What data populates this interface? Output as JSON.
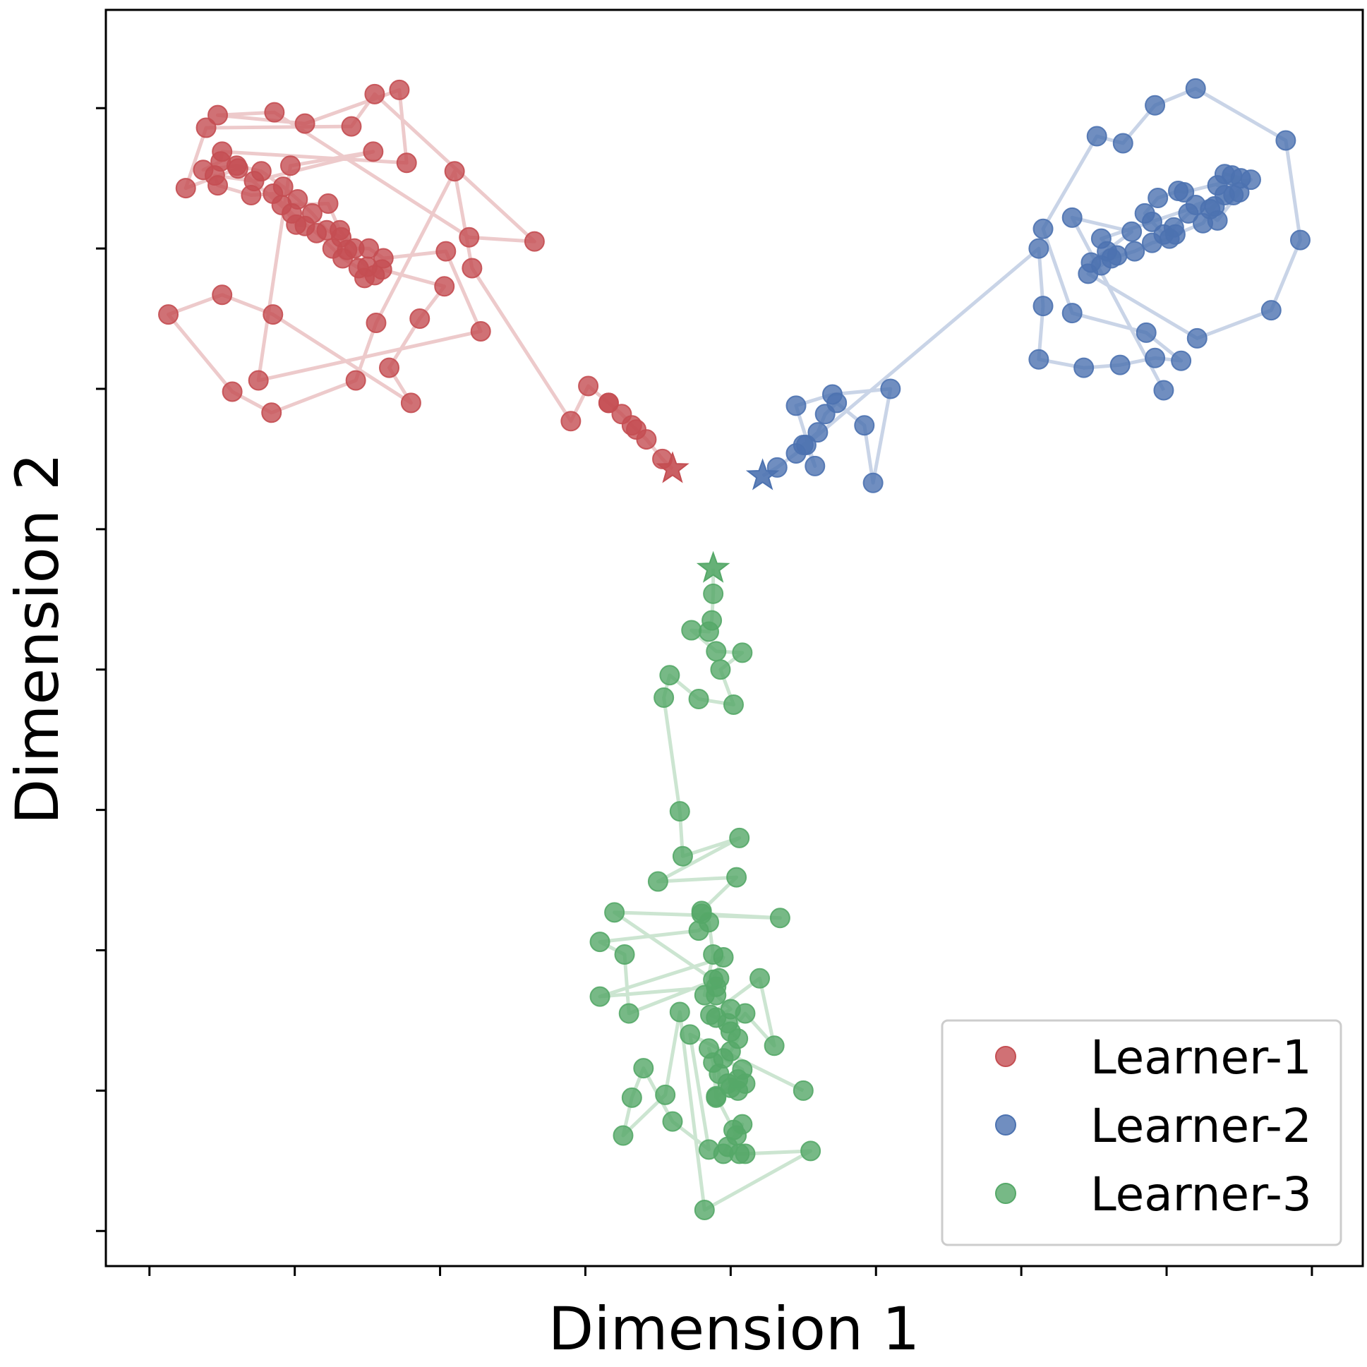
{
  "chart_data": {
    "type": "scatter",
    "title": "",
    "xlabel": "Dimension 1",
    "ylabel": "Dimension 2",
    "xlim": [
      -0.3,
      8.35
    ],
    "ylim": [
      -0.25,
      8.7
    ],
    "xticks": [
      0,
      1,
      2,
      3,
      4,
      5,
      6,
      7,
      8
    ],
    "yticks": [
      0,
      1,
      2,
      3,
      4,
      5,
      6,
      7,
      8
    ],
    "tick_labels_visible": false,
    "grid": false,
    "legend_position": "lower right",
    "series": [
      {
        "name": "Learner-1",
        "color": "#c44e52",
        "marker": "circle",
        "connected_by_line": true,
        "start_marker": "star",
        "points": [
          [
            3.6,
            5.43
          ],
          [
            3.53,
            5.5
          ],
          [
            3.42,
            5.64
          ],
          [
            3.35,
            5.71
          ],
          [
            3.32,
            5.74
          ],
          [
            3.25,
            5.82
          ],
          [
            3.16,
            5.9
          ],
          [
            3.16,
            5.9
          ],
          [
            3.02,
            6.02
          ],
          [
            2.9,
            5.77
          ],
          [
            2.22,
            6.86
          ],
          [
            2.1,
            7.55
          ],
          [
            1.56,
            6.47
          ],
          [
            1.42,
            6.06
          ],
          [
            0.84,
            5.83
          ],
          [
            0.57,
            5.98
          ],
          [
            0.13,
            6.53
          ],
          [
            0.5,
            6.67
          ],
          [
            0.85,
            6.53
          ],
          [
            1.8,
            5.9
          ],
          [
            1.65,
            6.15
          ],
          [
            1.86,
            6.5
          ],
          [
            2.03,
            6.73
          ],
          [
            1.6,
            6.85
          ],
          [
            1.55,
            6.81
          ],
          [
            1.5,
            6.87
          ],
          [
            1.36,
            6.99
          ],
          [
            1.32,
            7.08
          ],
          [
            1.22,
            7.13
          ],
          [
            1.12,
            7.25
          ],
          [
            1.02,
            7.35
          ],
          [
            0.92,
            7.44
          ],
          [
            0.77,
            7.55
          ],
          [
            0.6,
            7.59
          ],
          [
            0.37,
            7.56
          ],
          [
            0.49,
            7.62
          ],
          [
            0.5,
            7.69
          ],
          [
            1.77,
            7.61
          ],
          [
            1.72,
            8.13
          ],
          [
            1.07,
            7.89
          ],
          [
            0.47,
            7.95
          ],
          [
            0.86,
            7.97
          ],
          [
            2.2,
            7.08
          ],
          [
            2.65,
            7.05
          ],
          [
            1.55,
            8.1
          ],
          [
            1.39,
            7.87
          ],
          [
            0.39,
            7.86
          ],
          [
            0.25,
            7.43
          ],
          [
            0.61,
            7.57
          ],
          [
            1.07,
            7.16
          ],
          [
            1.01,
            7.17
          ],
          [
            0.91,
            7.31
          ],
          [
            1.23,
            7.32
          ],
          [
            1.31,
            7.13
          ],
          [
            1.41,
            7.0
          ],
          [
            1.51,
            7.0
          ],
          [
            1.61,
            6.93
          ],
          [
            2.04,
            6.98
          ],
          [
            2.28,
            6.41
          ],
          [
            0.75,
            6.06
          ],
          [
            0.97,
            7.59
          ],
          [
            1.54,
            7.69
          ],
          [
            0.72,
            7.48
          ],
          [
            0.45,
            7.52
          ],
          [
            0.47,
            7.45
          ],
          [
            0.7,
            7.38
          ],
          [
            0.85,
            7.39
          ],
          [
            0.98,
            7.25
          ],
          [
            1.15,
            7.11
          ],
          [
            1.26,
            7.0
          ],
          [
            1.33,
            6.93
          ],
          [
            1.44,
            6.86
          ],
          [
            1.48,
            6.79
          ]
        ]
      },
      {
        "name": "Learner-2",
        "color": "#4c72b0",
        "marker": "circle",
        "connected_by_line": true,
        "start_marker": "star",
        "points": [
          [
            4.22,
            5.38
          ],
          [
            4.32,
            5.44
          ],
          [
            4.45,
            5.54
          ],
          [
            4.5,
            5.6
          ],
          [
            4.6,
            5.69
          ],
          [
            4.65,
            5.82
          ],
          [
            4.73,
            5.9
          ],
          [
            4.92,
            5.74
          ],
          [
            4.98,
            5.33
          ],
          [
            5.1,
            6.0
          ],
          [
            4.7,
            5.96
          ],
          [
            4.45,
            5.88
          ],
          [
            4.58,
            5.45
          ],
          [
            4.52,
            5.6
          ],
          [
            6.12,
            7.0
          ],
          [
            6.15,
            6.59
          ],
          [
            6.12,
            6.21
          ],
          [
            6.43,
            6.15
          ],
          [
            6.68,
            6.17
          ],
          [
            6.92,
            6.22
          ],
          [
            7.1,
            6.2
          ],
          [
            6.86,
            6.4
          ],
          [
            6.35,
            6.54
          ],
          [
            6.15,
            7.14
          ],
          [
            6.52,
            7.8
          ],
          [
            6.7,
            7.75
          ],
          [
            6.92,
            8.02
          ],
          [
            7.2,
            8.14
          ],
          [
            7.82,
            7.77
          ],
          [
            7.92,
            7.06
          ],
          [
            7.72,
            6.56
          ],
          [
            7.21,
            6.36
          ],
          [
            6.46,
            6.82
          ],
          [
            6.55,
            6.88
          ],
          [
            6.62,
            6.93
          ],
          [
            6.78,
            6.98
          ],
          [
            6.9,
            7.04
          ],
          [
            7.02,
            7.07
          ],
          [
            7.06,
            7.1
          ],
          [
            7.25,
            7.18
          ],
          [
            7.33,
            7.3
          ],
          [
            7.46,
            7.38
          ],
          [
            7.58,
            7.49
          ],
          [
            7.35,
            7.45
          ],
          [
            7.4,
            7.53
          ],
          [
            7.45,
            7.52
          ],
          [
            7.51,
            7.5
          ],
          [
            7.12,
            7.4
          ],
          [
            7.08,
            7.41
          ],
          [
            6.94,
            7.36
          ],
          [
            6.85,
            7.25
          ],
          [
            6.9,
            7.19
          ],
          [
            6.98,
            7.1
          ],
          [
            7.05,
            7.15
          ],
          [
            7.15,
            7.25
          ],
          [
            7.3,
            7.28
          ],
          [
            7.4,
            7.38
          ],
          [
            7.2,
            7.31
          ],
          [
            7.35,
            7.2
          ],
          [
            7.5,
            7.4
          ],
          [
            6.55,
            7.07
          ],
          [
            6.66,
            6.95
          ],
          [
            6.59,
            6.98
          ],
          [
            6.48,
            6.9
          ],
          [
            6.76,
            7.12
          ],
          [
            6.35,
            7.22
          ],
          [
            6.98,
            5.99
          ]
        ]
      },
      {
        "name": "Learner-3",
        "color": "#55a868",
        "marker": "circle",
        "connected_by_line": true,
        "start_marker": "star",
        "points": [
          [
            3.88,
            4.72
          ],
          [
            3.88,
            4.54
          ],
          [
            3.87,
            4.35
          ],
          [
            3.85,
            4.27
          ],
          [
            3.73,
            4.28
          ],
          [
            3.9,
            4.13
          ],
          [
            4.08,
            4.12
          ],
          [
            3.93,
            4.0
          ],
          [
            4.02,
            3.75
          ],
          [
            3.78,
            3.79
          ],
          [
            3.58,
            3.96
          ],
          [
            3.54,
            3.8
          ],
          [
            3.65,
            2.99
          ],
          [
            3.67,
            2.67
          ],
          [
            4.06,
            2.8
          ],
          [
            3.5,
            2.49
          ],
          [
            4.04,
            2.52
          ],
          [
            3.8,
            2.28
          ],
          [
            3.8,
            2.26
          ],
          [
            4.34,
            2.23
          ],
          [
            3.2,
            2.27
          ],
          [
            3.88,
            1.79
          ],
          [
            3.95,
            1.95
          ],
          [
            3.1,
            1.67
          ],
          [
            3.9,
            1.74
          ],
          [
            3.92,
            1.8
          ],
          [
            3.3,
            1.55
          ],
          [
            3.27,
            1.97
          ],
          [
            3.1,
            2.06
          ],
          [
            3.78,
            2.14
          ],
          [
            3.85,
            2.2
          ],
          [
            3.88,
            1.97
          ],
          [
            3.82,
            1.68
          ],
          [
            3.9,
            1.68
          ],
          [
            4.0,
            1.58
          ],
          [
            3.9,
            1.52
          ],
          [
            3.98,
            1.48
          ],
          [
            3.86,
            1.54
          ],
          [
            4.2,
            1.8
          ],
          [
            4.3,
            1.32
          ],
          [
            4.1,
            1.55
          ],
          [
            4.0,
            1.42
          ],
          [
            4.05,
            1.37
          ],
          [
            4.0,
            1.28
          ],
          [
            3.95,
            1.23
          ],
          [
            4.08,
            1.15
          ],
          [
            4.1,
            1.05
          ],
          [
            4.0,
            1.02
          ],
          [
            4.05,
            1.0
          ],
          [
            3.98,
            1.05
          ],
          [
            4.05,
            1.08
          ],
          [
            3.9,
            0.95
          ],
          [
            3.92,
            1.12
          ],
          [
            3.85,
            1.3
          ],
          [
            3.88,
            1.2
          ],
          [
            3.9,
            0.96
          ],
          [
            4.02,
            0.72
          ],
          [
            4.04,
            0.68
          ],
          [
            4.08,
            0.76
          ],
          [
            3.98,
            0.6
          ],
          [
            3.95,
            0.55
          ],
          [
            4.06,
            0.55
          ],
          [
            4.1,
            0.55
          ],
          [
            4.55,
            0.57
          ],
          [
            3.82,
            0.15
          ],
          [
            3.65,
            1.56
          ],
          [
            3.55,
            0.97
          ],
          [
            3.26,
            0.68
          ],
          [
            3.32,
            0.95
          ],
          [
            3.4,
            1.16
          ],
          [
            3.6,
            0.78
          ],
          [
            3.85,
            0.58
          ],
          [
            3.72,
            1.4
          ],
          [
            4.5,
            1.0
          ]
        ]
      }
    ],
    "legend": [
      "Learner-1",
      "Learner-2",
      "Learner-3"
    ]
  }
}
